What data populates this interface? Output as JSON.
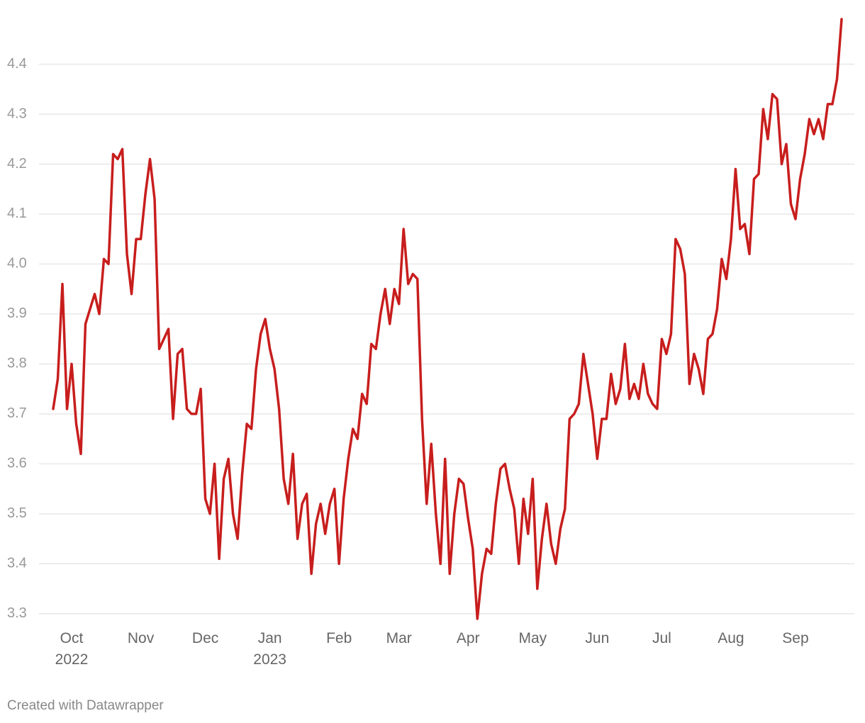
{
  "chart_data": {
    "type": "line",
    "categories": [
      null,
      null,
      null,
      null,
      "Oct\n2022",
      null,
      null,
      null,
      null,
      null,
      null,
      null,
      null,
      null,
      null,
      null,
      null,
      null,
      null,
      "Nov",
      null,
      null,
      null,
      null,
      null,
      null,
      null,
      null,
      null,
      null,
      null,
      null,
      null,
      "Dec",
      null,
      null,
      null,
      null,
      null,
      null,
      null,
      null,
      null,
      null,
      null,
      null,
      null,
      "Jan\n2023",
      null,
      null,
      null,
      null,
      null,
      null,
      null,
      null,
      null,
      null,
      null,
      null,
      null,
      null,
      "Feb",
      null,
      null,
      null,
      null,
      null,
      null,
      null,
      null,
      null,
      null,
      null,
      null,
      "Mar",
      null,
      null,
      null,
      null,
      null,
      null,
      null,
      null,
      null,
      null,
      null,
      null,
      null,
      null,
      "Apr",
      null,
      null,
      null,
      null,
      null,
      null,
      null,
      null,
      null,
      null,
      null,
      null,
      null,
      "May",
      null,
      null,
      null,
      null,
      null,
      null,
      null,
      null,
      null,
      null,
      null,
      null,
      null,
      "Jun",
      null,
      null,
      null,
      null,
      null,
      null,
      null,
      null,
      null,
      null,
      null,
      null,
      null,
      "Jul",
      null,
      null,
      null,
      null,
      null,
      null,
      null,
      null,
      null,
      null,
      null,
      null,
      null,
      null,
      "Aug",
      null,
      null,
      null,
      null,
      null,
      null,
      null,
      null,
      null,
      null,
      null,
      null,
      null,
      "Sep",
      null,
      null,
      null,
      null,
      null,
      null,
      null,
      null,
      null,
      null
    ],
    "values": [
      3.71,
      3.77,
      3.96,
      3.71,
      3.8,
      3.68,
      3.62,
      3.88,
      3.91,
      3.94,
      3.9,
      4.01,
      4.0,
      4.22,
      4.21,
      4.23,
      4.02,
      3.94,
      4.05,
      4.05,
      4.14,
      4.21,
      4.13,
      3.83,
      3.85,
      3.87,
      3.69,
      3.82,
      3.83,
      3.71,
      3.7,
      3.7,
      3.75,
      3.53,
      3.5,
      3.6,
      3.41,
      3.57,
      3.61,
      3.5,
      3.45,
      3.58,
      3.68,
      3.67,
      3.79,
      3.86,
      3.89,
      3.83,
      3.79,
      3.71,
      3.57,
      3.52,
      3.62,
      3.45,
      3.52,
      3.54,
      3.38,
      3.48,
      3.52,
      3.46,
      3.52,
      3.55,
      3.4,
      3.53,
      3.61,
      3.67,
      3.65,
      3.74,
      3.72,
      3.84,
      3.83,
      3.9,
      3.95,
      3.88,
      3.95,
      3.92,
      4.07,
      3.96,
      3.98,
      3.97,
      3.69,
      3.52,
      3.64,
      3.5,
      3.4,
      3.61,
      3.38,
      3.5,
      3.57,
      3.56,
      3.49,
      3.43,
      3.29,
      3.38,
      3.43,
      3.42,
      3.52,
      3.59,
      3.6,
      3.55,
      3.51,
      3.4,
      3.53,
      3.46,
      3.57,
      3.35,
      3.45,
      3.52,
      3.44,
      3.4,
      3.47,
      3.51,
      3.69,
      3.7,
      3.72,
      3.82,
      3.76,
      3.7,
      3.61,
      3.69,
      3.69,
      3.78,
      3.72,
      3.75,
      3.84,
      3.73,
      3.76,
      3.73,
      3.8,
      3.74,
      3.72,
      3.71,
      3.85,
      3.82,
      3.86,
      4.05,
      4.03,
      3.98,
      3.76,
      3.82,
      3.79,
      3.74,
      3.85,
      3.86,
      3.91,
      4.01,
      3.97,
      4.05,
      4.19,
      4.07,
      4.08,
      4.02,
      4.17,
      4.18,
      4.31,
      4.25,
      4.34,
      4.33,
      4.2,
      4.24,
      4.12,
      4.09,
      4.17,
      4.22,
      4.29,
      4.26,
      4.29,
      4.25,
      4.32,
      4.32,
      4.37,
      4.49
    ],
    "color": "#c71e1d",
    "ylim": [
      3.28,
      4.5
    ],
    "yticks": [
      3.3,
      3.4,
      3.5,
      3.6,
      3.7,
      3.8,
      3.9,
      {
        "value": 4,
        "label": "4.0"
      },
      4.1,
      4.2,
      4.3,
      4.4
    ],
    "grid": true,
    "footer": "Created with Datawrapper"
  }
}
